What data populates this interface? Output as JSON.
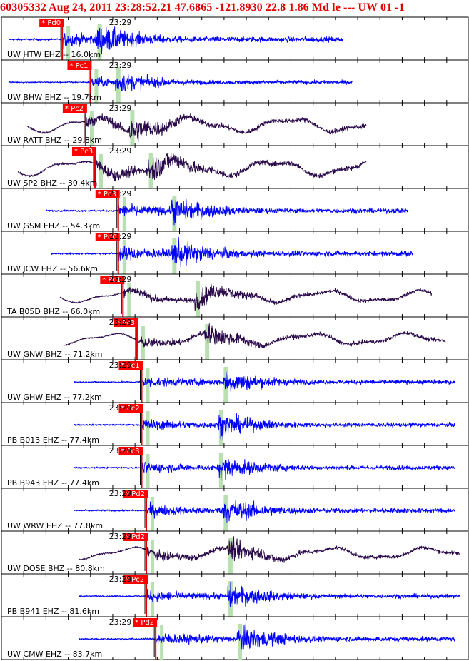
{
  "header": {
    "text": "60305332 Aug 24, 2011 23:28:52.21   47.6865 -121.8930 22.8 1.86 Md le --- UW 01  -1",
    "color": "#e00000"
  },
  "colors": {
    "short_period": "#0000ff",
    "broadband": "#2a0a4a",
    "pick_box": "#ff0000",
    "pick_text": "#ffffff",
    "pick_line": "#e00000",
    "marker": "#b8e0b0",
    "grid": "#000000"
  },
  "chart_data": {
    "type": "seismogram",
    "tick_label": "23:29",
    "traces": [
      {
        "label": "UW HTW EHZ -- 16.0km",
        "pick": "Pd0",
        "kind": "sp",
        "p_time": 0.13,
        "s_time": 0.21,
        "amp": 0.55,
        "start": 0.0,
        "end": 0.73
      },
      {
        "label": "UW BHW EHZ -- 19.7km",
        "pick": "Pc1",
        "kind": "sp",
        "p_time": 0.19,
        "s_time": 0.25,
        "amp": 0.4,
        "start": 0.0,
        "end": 0.75
      },
      {
        "label": "UW RATT BHZ -- 29.8km",
        "pick": "Pc2",
        "kind": "bb",
        "p_time": 0.18,
        "s_time": 0.28,
        "amp": 0.55,
        "start": 0.04,
        "end": 0.78
      },
      {
        "label": "UW SP2 BHZ -- 30.4km",
        "pick": "Pc3",
        "kind": "bb",
        "p_time": 0.2,
        "s_time": 0.32,
        "amp": 0.6,
        "start": 0.02,
        "end": 0.78
      },
      {
        "label": "UW GSM EHZ -- 54.3km",
        "pick": "Pc3",
        "kind": "sp",
        "p_time": 0.25,
        "s_time": 0.37,
        "amp": 0.5,
        "start": 0.08,
        "end": 0.87
      },
      {
        "label": "UW JCW EHZ -- 56.6km",
        "pick": "Pd0",
        "kind": "sp",
        "p_time": 0.25,
        "s_time": 0.37,
        "amp": 0.55,
        "start": 0.09,
        "end": 0.88
      },
      {
        "label": "TA B05D BHZ -- 66.0km",
        "pick": "Pc1",
        "kind": "bb",
        "p_time": 0.26,
        "s_time": 0.42,
        "amp": 0.45,
        "start": 0.11,
        "end": 0.92
      },
      {
        "label": "UW GNW BHZ -- 71.2km",
        "pick": "Pc3",
        "kind": "bb",
        "p_time": 0.29,
        "s_time": 0.44,
        "amp": 0.45,
        "start": 0.12,
        "end": 0.95
      },
      {
        "label": "UW GHW EHZ -- 77.2km",
        "pick": "Pc1",
        "kind": "sp",
        "p_time": 0.3,
        "s_time": 0.48,
        "amp": 0.45,
        "start": 0.14,
        "end": 0.97
      },
      {
        "label": "PB B013 EHZ -- 77.4km",
        "pick": "Pc2",
        "kind": "sp",
        "p_time": 0.3,
        "s_time": 0.47,
        "amp": 0.45,
        "start": 0.14,
        "end": 0.97
      },
      {
        "label": "PB B943 EHZ -- 77.4km",
        "pick": "Pc3",
        "kind": "sp",
        "p_time": 0.3,
        "s_time": 0.47,
        "amp": 0.45,
        "start": 0.14,
        "end": 0.97
      },
      {
        "label": "UW WRW EHZ -- 77.8km",
        "pick": "Pd2",
        "kind": "sp",
        "p_time": 0.31,
        "s_time": 0.48,
        "amp": 0.5,
        "start": 0.14,
        "end": 0.97
      },
      {
        "label": "UW DOSE BHZ -- 80.8km",
        "pick": "Pd2",
        "kind": "bb",
        "p_time": 0.31,
        "s_time": 0.49,
        "amp": 0.45,
        "start": 0.15,
        "end": 0.98
      },
      {
        "label": "PB B941 EHZ -- 81.6km",
        "pick": "Pc2",
        "kind": "sp",
        "p_time": 0.31,
        "s_time": 0.49,
        "amp": 0.45,
        "start": 0.15,
        "end": 0.98
      },
      {
        "label": "UW CMW EHZ -- 83.7km",
        "pick": "Pd2",
        "kind": "sp",
        "p_time": 0.33,
        "s_time": 0.51,
        "amp": 0.5,
        "start": 0.15,
        "end": 0.97
      }
    ]
  }
}
